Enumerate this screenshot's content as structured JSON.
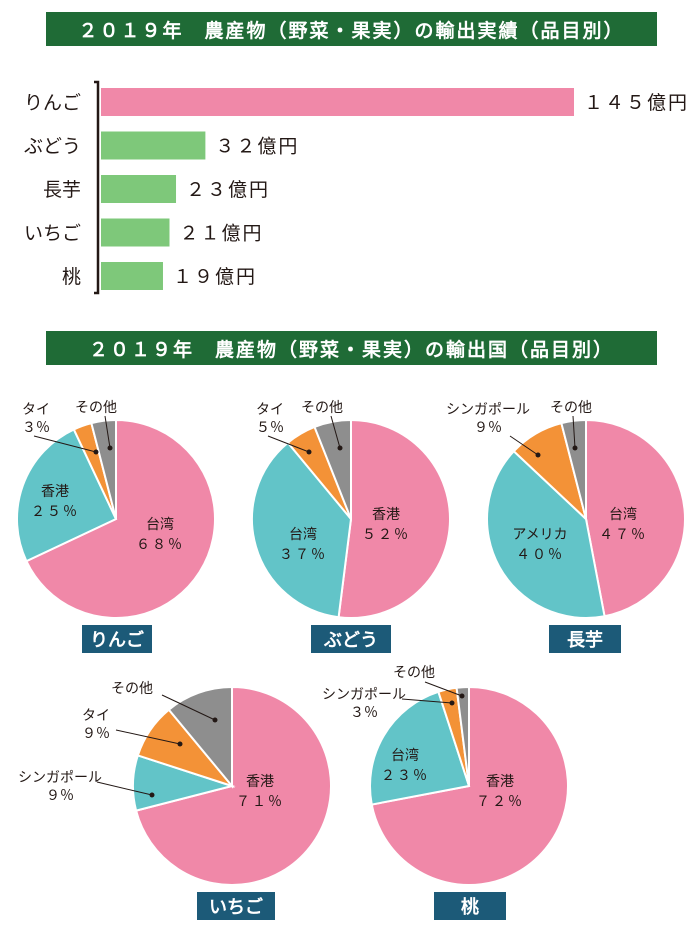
{
  "bar_banner": "２０１９年　農産物（野菜・果実）の輸出実績（品目別）",
  "pie_banner": "２０１９年　農産物（野菜・果実）の輸出国（品目別）",
  "colors": {
    "banner": "#1f6b36",
    "tag": "#1c5a78",
    "pink": "#f088a8",
    "green": "#7ec87a",
    "teal": "#62c4c8",
    "orange": "#f39237",
    "gray": "#8e8e8e"
  },
  "chart_data": [
    {
      "type": "bar",
      "orientation": "horizontal",
      "categories": [
        "りんご",
        "ぶどう",
        "長芋",
        "いちご",
        "桃"
      ],
      "values": [
        145,
        32,
        23,
        21,
        19
      ],
      "value_labels": [
        "１４５億円",
        "３２億円",
        "２３億円",
        "２１億円",
        "１９億円"
      ],
      "unit": "億円",
      "bar_colors": [
        "#f088a8",
        "#7ec87a",
        "#7ec87a",
        "#7ec87a",
        "#7ec87a"
      ]
    },
    {
      "type": "pie",
      "title": "りんご",
      "slices": [
        {
          "name": "台湾",
          "value": 68,
          "label": "６８％",
          "color": "#f088a8"
        },
        {
          "name": "香港",
          "value": 25,
          "label": "２５％",
          "color": "#62c4c8"
        },
        {
          "name": "タイ",
          "value": 3,
          "label": "３％",
          "color": "#f39237"
        },
        {
          "name": "その他",
          "value": 4,
          "label": "",
          "color": "#8e8e8e"
        }
      ]
    },
    {
      "type": "pie",
      "title": "ぶどう",
      "slices": [
        {
          "name": "香港",
          "value": 52,
          "label": "５２％",
          "color": "#f088a8"
        },
        {
          "name": "台湾",
          "value": 37,
          "label": "３７％",
          "color": "#62c4c8"
        },
        {
          "name": "タイ",
          "value": 5,
          "label": "５％",
          "color": "#f39237"
        },
        {
          "name": "その他",
          "value": 6,
          "label": "",
          "color": "#8e8e8e"
        }
      ]
    },
    {
      "type": "pie",
      "title": "長芋",
      "slices": [
        {
          "name": "台湾",
          "value": 47,
          "label": "４７％",
          "color": "#f088a8"
        },
        {
          "name": "アメリカ",
          "value": 40,
          "label": "４０％",
          "color": "#62c4c8"
        },
        {
          "name": "シンガポール",
          "value": 9,
          "label": "９％",
          "color": "#f39237"
        },
        {
          "name": "その他",
          "value": 4,
          "label": "",
          "color": "#8e8e8e"
        }
      ]
    },
    {
      "type": "pie",
      "title": "いちご",
      "slices": [
        {
          "name": "香港",
          "value": 71,
          "label": "７１％",
          "color": "#f088a8"
        },
        {
          "name": "シンガポール",
          "value": 9,
          "label": "９％",
          "color": "#62c4c8"
        },
        {
          "name": "タイ",
          "value": 9,
          "label": "９％",
          "color": "#f39237"
        },
        {
          "name": "その他",
          "value": 11,
          "label": "",
          "color": "#8e8e8e"
        }
      ]
    },
    {
      "type": "pie",
      "title": "桃",
      "slices": [
        {
          "name": "香港",
          "value": 72,
          "label": "７２％",
          "color": "#f088a8"
        },
        {
          "name": "台湾",
          "value": 23,
          "label": "２３％",
          "color": "#62c4c8"
        },
        {
          "name": "シンガポール",
          "value": 3,
          "label": "３％",
          "color": "#f39237"
        },
        {
          "name": "その他",
          "value": 2,
          "label": "",
          "color": "#8e8e8e"
        }
      ]
    }
  ]
}
